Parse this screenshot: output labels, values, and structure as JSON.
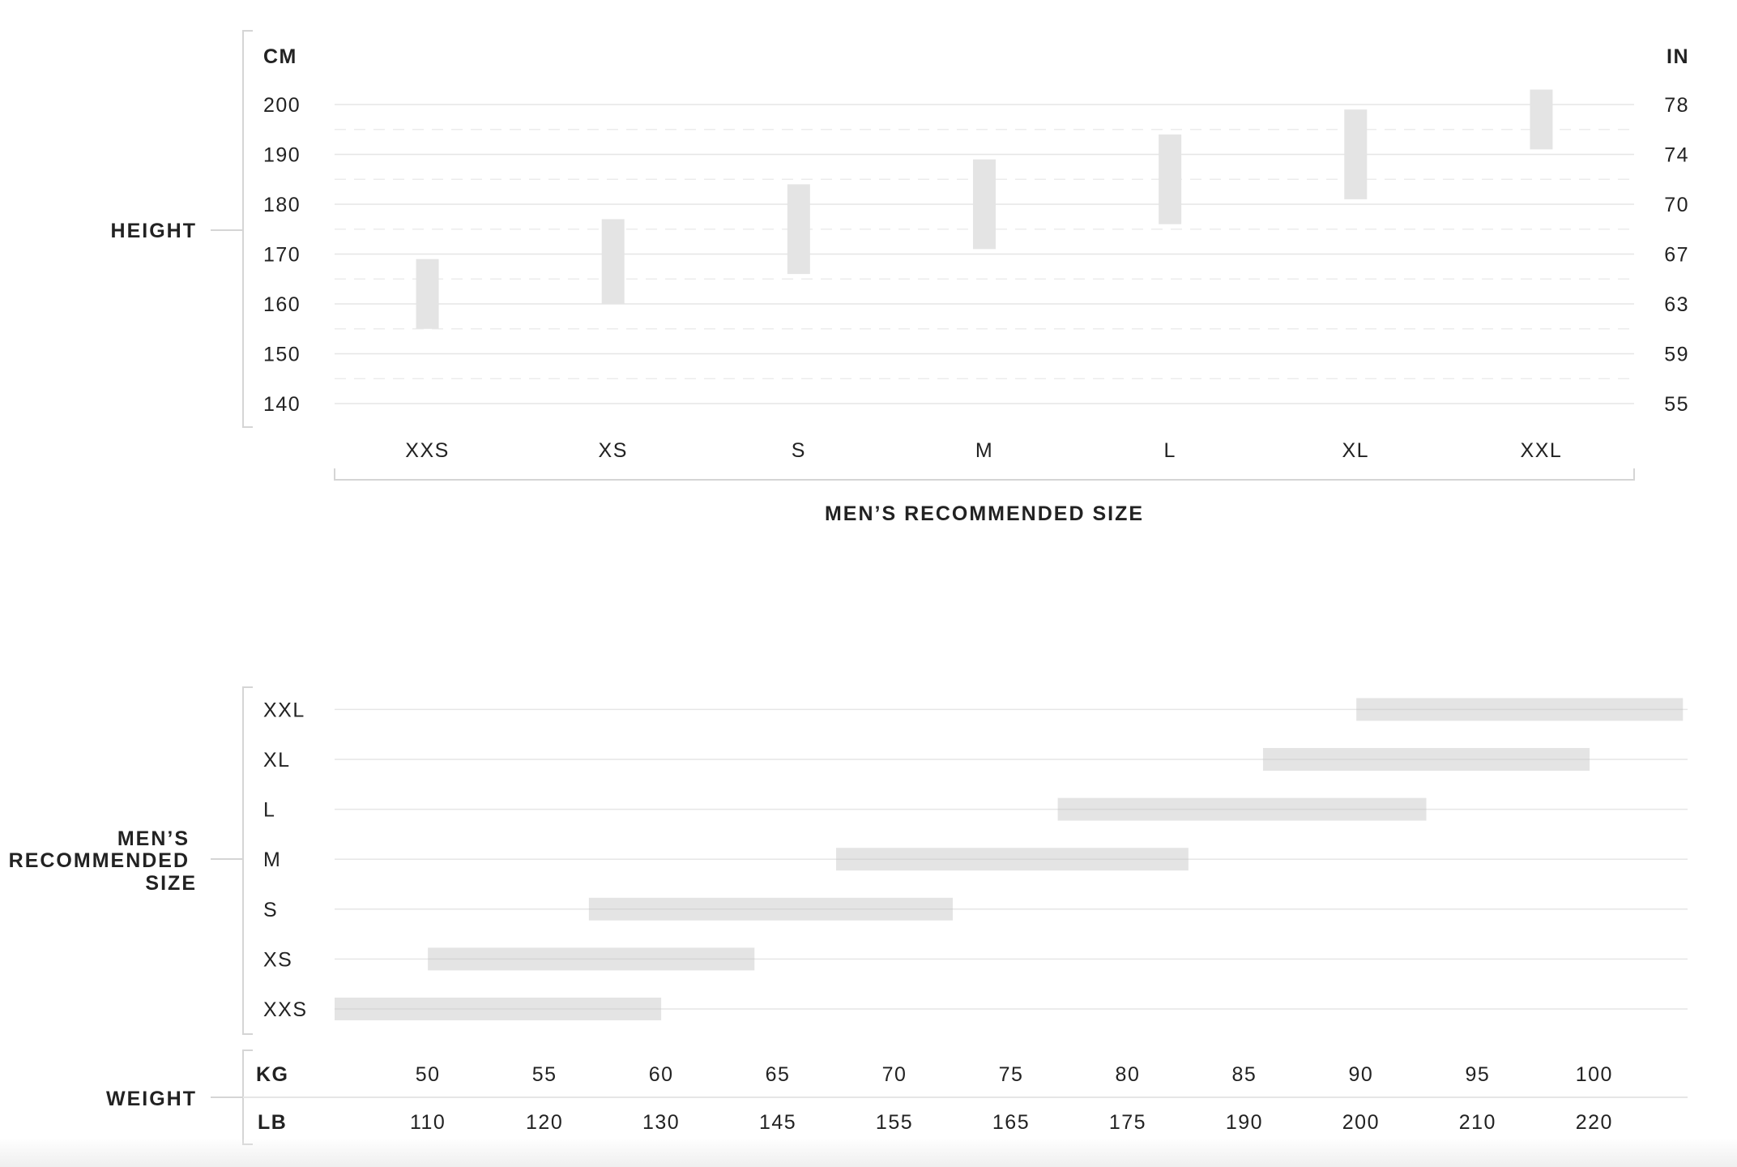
{
  "colors": {
    "text": "#222222",
    "bar": "#e4e4e4",
    "grid": "#e6e6e6",
    "grid_dashed": "#ececec",
    "bracket": "#d5d5d5"
  },
  "height_chart": {
    "row_label": "HEIGHT",
    "left_unit": "CM",
    "right_unit": "IN",
    "left_ticks": [
      "200",
      "190",
      "180",
      "170",
      "160",
      "150",
      "140"
    ],
    "right_ticks": [
      "78",
      "74",
      "70",
      "67",
      "63",
      "59",
      "55"
    ],
    "xlabel": "MEN’S RECOMMENDED SIZE"
  },
  "weight_chart": {
    "row_label_lines": [
      "MEN’S",
      "RECOMMENDED",
      "SIZE"
    ],
    "weight_label": "WEIGHT",
    "kg_unit": "KG",
    "lb_unit": "LB",
    "kg_ticks": [
      "50",
      "55",
      "60",
      "65",
      "70",
      "75",
      "80",
      "85",
      "90",
      "95",
      "100"
    ],
    "lb_ticks": [
      "110",
      "120",
      "130",
      "145",
      "155",
      "165",
      "175",
      "190",
      "200",
      "210",
      "220"
    ]
  },
  "chart_data": [
    {
      "type": "bar",
      "orientation": "vertical-range",
      "categories": [
        "XXS",
        "XS",
        "S",
        "M",
        "L",
        "XL",
        "XXL"
      ],
      "ranges_cm": [
        [
          155,
          169
        ],
        [
          160,
          177
        ],
        [
          166,
          184
        ],
        [
          171,
          189
        ],
        [
          176,
          194
        ],
        [
          181,
          199
        ],
        [
          191,
          203
        ]
      ],
      "ylabel": "HEIGHT",
      "xlabel": "MEN’S RECOMMENDED SIZE",
      "ylim_cm": [
        140,
        200
      ],
      "grid": true
    },
    {
      "type": "bar",
      "orientation": "horizontal-range",
      "categories": [
        "XXS",
        "XS",
        "S",
        "M",
        "L",
        "XL",
        "XXL"
      ],
      "ranges_kg": [
        [
          46,
          60
        ],
        [
          50,
          64
        ],
        [
          56.9,
          72.5
        ],
        [
          67.5,
          82.6
        ],
        [
          77,
          92.8
        ],
        [
          85.8,
          99.8
        ],
        [
          89.8,
          103.8
        ]
      ],
      "ylabel": "MEN’S RECOMMENDED SIZE",
      "xlabel": "WEIGHT",
      "xlim_kg": [
        46,
        104
      ],
      "grid": true
    }
  ]
}
